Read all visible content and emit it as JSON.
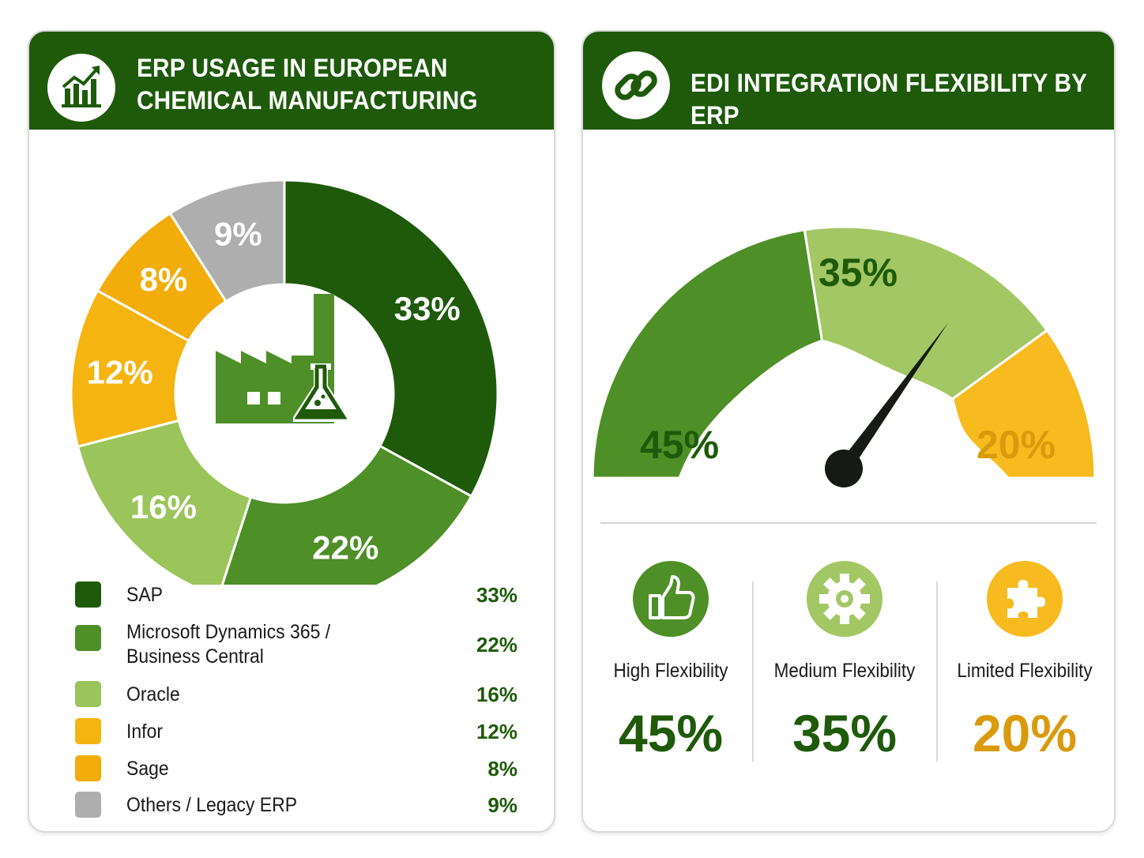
{
  "colors": {
    "header": "#1e5a0a",
    "sap": "#1e5a0a",
    "microsoft": "#4e8f27",
    "oracle": "#9bc45a",
    "infor": "#f5b40f",
    "sage": "#f2ad0a",
    "others": "#aeaeae",
    "high": "#4e8f27",
    "medium": "#a3c764",
    "limited": "#f7bb1f",
    "limited_text": "#d99a0d",
    "needle": "#151a15"
  },
  "erp_card": {
    "title_line1": "ERP USAGE IN EUROPEAN",
    "title_line2": "CHEMICAL MANUFACTURING",
    "icon": "growth-chart-icon",
    "center_icon": "factory-flask-icon"
  },
  "edi_card": {
    "title": "EDI INTEGRATION FLEXIBILITY BY ERP",
    "icon": "chain-link-icon"
  },
  "chart_data": [
    {
      "type": "pie",
      "donut": true,
      "title": "ERP USAGE IN EUROPEAN CHEMICAL MANUFACTURING",
      "slices": [
        {
          "label": "SAP",
          "value": 33,
          "display": "33%",
          "color": "#1e5a0a"
        },
        {
          "label": "Microsoft Dynamics 365 /\nBusiness Central",
          "value": 22,
          "display": "22%",
          "color": "#4e8f27"
        },
        {
          "label": "Oracle",
          "value": 16,
          "display": "16%",
          "color": "#9bc45a"
        },
        {
          "label": "Infor",
          "value": 12,
          "display": "12%",
          "color": "#f5b40f"
        },
        {
          "label": "Sage",
          "value": 8,
          "display": "8%",
          "color": "#f2ad0a"
        },
        {
          "label": "Others / Legacy ERP",
          "value": 9,
          "display": "9%",
          "color": "#aeaeae"
        }
      ],
      "legend_placement": "bottom"
    },
    {
      "type": "gauge",
      "title": "EDI INTEGRATION FLEXIBILITY BY ERP",
      "segments": [
        {
          "label": "High Flexibility",
          "value": 45,
          "display": "45%",
          "color": "#4e8f27",
          "icon": "thumbs-up-icon"
        },
        {
          "label": "Medium Flexibility",
          "value": 35,
          "display": "35%",
          "color": "#a3c764",
          "icon": "gear-icon"
        },
        {
          "label": "Limited Flexibility",
          "value": 20,
          "display": "20%",
          "color": "#f7bb1f",
          "icon": "puzzle-piece-icon"
        }
      ],
      "needle_position": 0.69
    }
  ]
}
